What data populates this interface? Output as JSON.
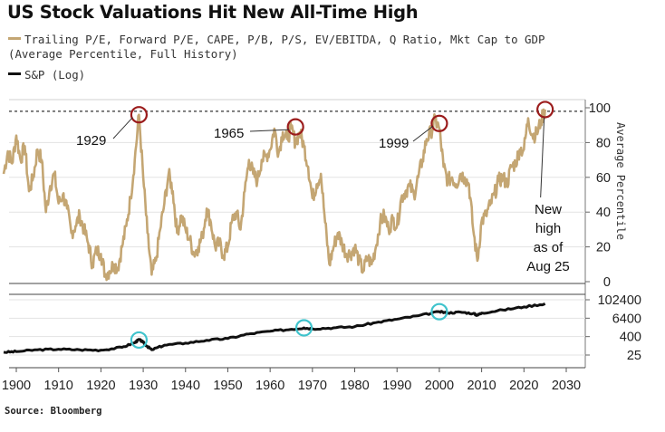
{
  "title": "US Stock Valuations Hit New All-Time High",
  "legend": {
    "pe_line1": "Trailing P/E, Forward P/E, CAPE, P/B, P/S, EV/EBITDA, Q Ratio, Mkt Cap to GDP",
    "pe_line2": "(Average Percentile, Full History)",
    "sp": "S&P (Log)"
  },
  "source": "Source: Bloomberg",
  "colors": {
    "percentile": "#c4a673",
    "sp": "#111111",
    "marker_red": "#9b1c1c",
    "marker_cyan": "#3fc3cc",
    "dashed": "#333333"
  },
  "chart_data": [
    {
      "type": "line",
      "ylabel": "Average Percentile",
      "ylim": [
        0,
        100
      ],
      "xlim": [
        1897,
        2030
      ],
      "yticks": [
        "0",
        "20",
        "40",
        "60",
        "80",
        "100"
      ],
      "reference_line": 98,
      "series": [
        {
          "name": "Trailing P/E, Forward P/E, CAPE, P/B, P/S, EV/EBITDA, Q Ratio, Mkt Cap to GDP",
          "x": [
            1897,
            1898,
            1899,
            1900,
            1901,
            1902,
            1903,
            1904,
            1905,
            1906,
            1907,
            1908,
            1909,
            1910,
            1911,
            1912,
            1913,
            1914,
            1915,
            1916,
            1917,
            1918,
            1919,
            1920,
            1921,
            1922,
            1923,
            1924,
            1925,
            1926,
            1927,
            1928,
            1929,
            1930,
            1931,
            1932,
            1933,
            1934,
            1935,
            1936,
            1937,
            1938,
            1939,
            1940,
            1941,
            1942,
            1943,
            1944,
            1945,
            1946,
            1947,
            1948,
            1949,
            1950,
            1951,
            1952,
            1953,
            1954,
            1955,
            1956,
            1957,
            1958,
            1959,
            1960,
            1961,
            1962,
            1963,
            1964,
            1965,
            1966,
            1967,
            1968,
            1969,
            1970,
            1971,
            1972,
            1973,
            1974,
            1975,
            1976,
            1977,
            1978,
            1979,
            1980,
            1981,
            1982,
            1983,
            1984,
            1985,
            1986,
            1987,
            1988,
            1989,
            1990,
            1991,
            1992,
            1993,
            1994,
            1995,
            1996,
            1997,
            1998,
            1999,
            2000,
            2001,
            2002,
            2003,
            2004,
            2005,
            2006,
            2007,
            2008,
            2009,
            2010,
            2011,
            2012,
            2013,
            2014,
            2015,
            2016,
            2017,
            2018,
            2019,
            2020,
            2021,
            2022,
            2023,
            2024,
            2025
          ],
          "y": [
            62,
            75,
            68,
            84,
            70,
            78,
            52,
            60,
            76,
            70,
            40,
            55,
            62,
            45,
            50,
            42,
            28,
            32,
            38,
            30,
            22,
            10,
            18,
            16,
            4,
            6,
            10,
            8,
            20,
            32,
            48,
            70,
            96,
            60,
            28,
            4,
            12,
            30,
            45,
            62,
            52,
            28,
            38,
            30,
            24,
            16,
            20,
            26,
            42,
            34,
            20,
            22,
            15,
            20,
            35,
            40,
            30,
            52,
            70,
            62,
            58,
            70,
            72,
            76,
            88,
            74,
            86,
            82,
            88,
            80,
            86,
            78,
            66,
            48,
            56,
            62,
            34,
            10,
            20,
            28,
            22,
            16,
            16,
            20,
            12,
            6,
            14,
            10,
            20,
            34,
            38,
            30,
            36,
            32,
            48,
            52,
            55,
            50,
            60,
            70,
            82,
            86,
            93,
            88,
            66,
            58,
            60,
            56,
            62,
            60,
            56,
            30,
            12,
            35,
            38,
            44,
            50,
            58,
            60,
            56,
            66,
            68,
            76,
            76,
            94,
            84,
            85,
            92,
            99
          ]
        }
      ],
      "annotations": [
        {
          "label": "1929",
          "x": 1929,
          "y": 96
        },
        {
          "label": "1965",
          "x": 1966,
          "y": 89
        },
        {
          "label": "1999",
          "x": 2000,
          "y": 91
        },
        {
          "label": "New high as of Aug 25",
          "x": 2025,
          "y": 99
        }
      ]
    },
    {
      "type": "line",
      "yscale": "log",
      "ylim": [
        5,
        400000
      ],
      "yticks": [
        "25",
        "400",
        "6400",
        "102400"
      ],
      "series": [
        {
          "name": "S&P (Log)",
          "x": [
            1897,
            1900,
            1905,
            1910,
            1915,
            1920,
            1925,
            1928,
            1929,
            1930,
            1931,
            1932,
            1935,
            1940,
            1945,
            1950,
            1955,
            1960,
            1965,
            1968,
            1970,
            1975,
            1980,
            1985,
            1990,
            1995,
            2000,
            2002,
            2005,
            2008,
            2009,
            2010,
            2015,
            2020,
            2025
          ],
          "y": [
            38,
            42,
            55,
            60,
            55,
            52,
            80,
            160,
            260,
            170,
            90,
            55,
            110,
            150,
            230,
            300,
            600,
            900,
            1200,
            1500,
            1300,
            1500,
            1800,
            3300,
            5500,
            9200,
            17000,
            14000,
            16000,
            13000,
            10000,
            14000,
            22000,
            35000,
            56000
          ]
        }
      ],
      "markers": [
        {
          "x": 1929,
          "y": 240
        },
        {
          "x": 1968,
          "y": 1500
        },
        {
          "x": 2000,
          "y": 17000
        }
      ]
    }
  ],
  "x_axis": {
    "ticks": [
      "1900",
      "1910",
      "1920",
      "1930",
      "1940",
      "1950",
      "1960",
      "1970",
      "1980",
      "1990",
      "2000",
      "2010",
      "2020",
      "2030"
    ]
  }
}
